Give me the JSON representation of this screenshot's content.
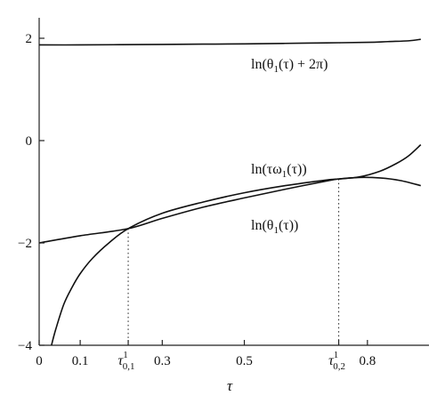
{
  "chart_data": {
    "type": "line",
    "title": "",
    "xlabel": "τ",
    "ylabel": "",
    "xlim": [
      0,
      0.95
    ],
    "ylim": [
      -4,
      2.4
    ],
    "grid": false,
    "legend": "none",
    "x_ticks": [
      {
        "value": 0,
        "label": "0"
      },
      {
        "value": 0.1,
        "label": "0.1"
      },
      {
        "value": 0.3,
        "label": "0.3"
      },
      {
        "value": 0.5,
        "label": "0.5"
      },
      {
        "value": 0.8,
        "label": "0.8"
      }
    ],
    "x_special_ticks": [
      {
        "value": 0.217,
        "base": "τ",
        "sub": "0,1",
        "sup": "1"
      },
      {
        "value": 0.73,
        "base": "τ",
        "sub": "0,2",
        "sup": "1"
      }
    ],
    "y_ticks": [
      {
        "value": 2,
        "label": "2"
      },
      {
        "value": 0,
        "label": "0"
      },
      {
        "value": -2,
        "label": "−2"
      },
      {
        "value": -4,
        "label": "−4"
      }
    ],
    "series": [
      {
        "name": "ln(θ1(τ) + 2π)",
        "x": [
          0,
          0.1,
          0.2,
          0.3,
          0.4,
          0.5,
          0.6,
          0.7,
          0.8,
          0.85,
          0.9,
          0.93
        ],
        "values": [
          1.87,
          1.87,
          1.875,
          1.88,
          1.885,
          1.89,
          1.9,
          1.91,
          1.92,
          1.935,
          1.95,
          1.98
        ]
      },
      {
        "name": "ln(τω1(τ))",
        "x": [
          0.03,
          0.04,
          0.06,
          0.08,
          0.1,
          0.13,
          0.17,
          0.217,
          0.3,
          0.4,
          0.5,
          0.6,
          0.7,
          0.73,
          0.78,
          0.83,
          0.87,
          0.9,
          0.93
        ],
        "values": [
          -4.0,
          -3.7,
          -3.2,
          -2.87,
          -2.6,
          -2.3,
          -2.0,
          -1.72,
          -1.42,
          -1.2,
          -1.02,
          -0.88,
          -0.77,
          -0.75,
          -0.71,
          -0.6,
          -0.45,
          -0.3,
          -0.08
        ]
      },
      {
        "name": "ln(θ1(τ))",
        "x": [
          0,
          0.1,
          0.217,
          0.3,
          0.4,
          0.5,
          0.6,
          0.7,
          0.73,
          0.78,
          0.83,
          0.88,
          0.93
        ],
        "values": [
          -2.0,
          -1.86,
          -1.72,
          -1.52,
          -1.3,
          -1.12,
          -0.95,
          -0.79,
          -0.75,
          -0.72,
          -0.73,
          -0.78,
          -0.88
        ]
      }
    ],
    "annotations": [
      {
        "text_parts": [
          "ln(θ",
          "1",
          "(τ) + 2π)"
        ],
        "series": 0
      },
      {
        "text_parts": [
          "ln(τω",
          "1",
          "(τ))"
        ],
        "series": 1
      },
      {
        "text_parts": [
          "ln(θ",
          "1",
          "(τ))"
        ],
        "series": 2
      }
    ]
  }
}
